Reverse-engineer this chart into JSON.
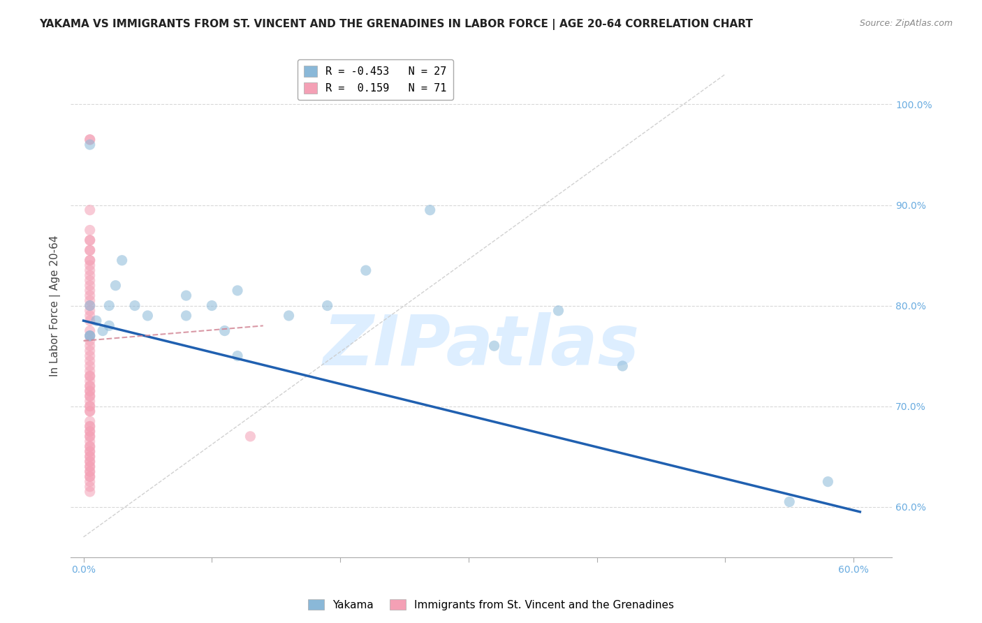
{
  "title": "YAKAMA VS IMMIGRANTS FROM ST. VINCENT AND THE GRENADINES IN LABOR FORCE | AGE 20-64 CORRELATION CHART",
  "source": "Source: ZipAtlas.com",
  "ylabel": "In Labor Force | Age 20-64",
  "watermark": "ZIPatlas",
  "legend_entries": [
    {
      "label": "R = -0.453   N = 27",
      "color": "#a8c8e8"
    },
    {
      "label": "R =  0.159   N = 71",
      "color": "#f4b0c0"
    }
  ],
  "legend_labels": [
    "Yakama",
    "Immigrants from St. Vincent and the Grenadines"
  ],
  "xlim": [
    -0.01,
    0.63
  ],
  "ylim": [
    0.55,
    1.05
  ],
  "ytick_vals": [
    0.6,
    0.7,
    0.8,
    0.9,
    1.0
  ],
  "ytick_labels": [
    "60.0%",
    "70.0%",
    "80.0%",
    "90.0%",
    "100.0%"
  ],
  "xtick_vals": [
    0.0,
    0.1,
    0.2,
    0.3,
    0.4,
    0.5,
    0.6
  ],
  "xtick_labels": [
    "0.0%",
    "",
    "",
    "",
    "",
    "",
    "60.0%"
  ],
  "blue_scatter_x": [
    0.005,
    0.01,
    0.015,
    0.02,
    0.02,
    0.025,
    0.03,
    0.04,
    0.05,
    0.08,
    0.08,
    0.1,
    0.11,
    0.12,
    0.12,
    0.16,
    0.19,
    0.22,
    0.27,
    0.32,
    0.37,
    0.42,
    0.55,
    0.58,
    0.005,
    0.005,
    0.005
  ],
  "blue_scatter_y": [
    0.8,
    0.785,
    0.775,
    0.8,
    0.78,
    0.82,
    0.845,
    0.8,
    0.79,
    0.81,
    0.79,
    0.8,
    0.775,
    0.815,
    0.75,
    0.79,
    0.8,
    0.835,
    0.895,
    0.76,
    0.795,
    0.74,
    0.605,
    0.625,
    0.77,
    0.77,
    0.96
  ],
  "pink_scatter_x": [
    0.005,
    0.005,
    0.005,
    0.005,
    0.005,
    0.005,
    0.005,
    0.005,
    0.005,
    0.005,
    0.005,
    0.005,
    0.005,
    0.005,
    0.005,
    0.005,
    0.005,
    0.005,
    0.005,
    0.005,
    0.005,
    0.005,
    0.005,
    0.005,
    0.005,
    0.005,
    0.005,
    0.005,
    0.005,
    0.005,
    0.005,
    0.005,
    0.005,
    0.005,
    0.005,
    0.005,
    0.005,
    0.005,
    0.005,
    0.005,
    0.005,
    0.005,
    0.005,
    0.005,
    0.005,
    0.005,
    0.005,
    0.005,
    0.005,
    0.005,
    0.005,
    0.005,
    0.005,
    0.005,
    0.005,
    0.005,
    0.005,
    0.005,
    0.005,
    0.005,
    0.005,
    0.005,
    0.005,
    0.005,
    0.005,
    0.005,
    0.005,
    0.005,
    0.005,
    0.005,
    0.13
  ],
  "pink_scatter_y": [
    0.965,
    0.965,
    0.895,
    0.875,
    0.865,
    0.865,
    0.855,
    0.855,
    0.845,
    0.845,
    0.84,
    0.835,
    0.83,
    0.825,
    0.82,
    0.815,
    0.81,
    0.805,
    0.8,
    0.795,
    0.79,
    0.785,
    0.775,
    0.77,
    0.765,
    0.76,
    0.755,
    0.75,
    0.745,
    0.74,
    0.735,
    0.73,
    0.72,
    0.715,
    0.71,
    0.7,
    0.695,
    0.685,
    0.68,
    0.675,
    0.67,
    0.66,
    0.655,
    0.65,
    0.645,
    0.64,
    0.635,
    0.63,
    0.68,
    0.675,
    0.67,
    0.665,
    0.66,
    0.655,
    0.65,
    0.645,
    0.64,
    0.635,
    0.63,
    0.625,
    0.62,
    0.615,
    0.73,
    0.725,
    0.72,
    0.715,
    0.71,
    0.705,
    0.7,
    0.695,
    0.67
  ],
  "blue_line_x": [
    0.0,
    0.605
  ],
  "blue_line_y": [
    0.785,
    0.595
  ],
  "pink_line_x": [
    0.0,
    0.14
  ],
  "pink_line_y": [
    0.765,
    0.78
  ],
  "blue_color": "#8ab8d8",
  "pink_color": "#f4a0b5",
  "blue_line_color": "#2060b0",
  "pink_line_color": "#d08090",
  "diag_line_color": "#cccccc",
  "grid_color": "#d8d8d8",
  "right_axis_color": "#6aace0",
  "watermark_color": "#ddeeff",
  "title_fontsize": 11,
  "source_fontsize": 9,
  "tick_fontsize": 10
}
